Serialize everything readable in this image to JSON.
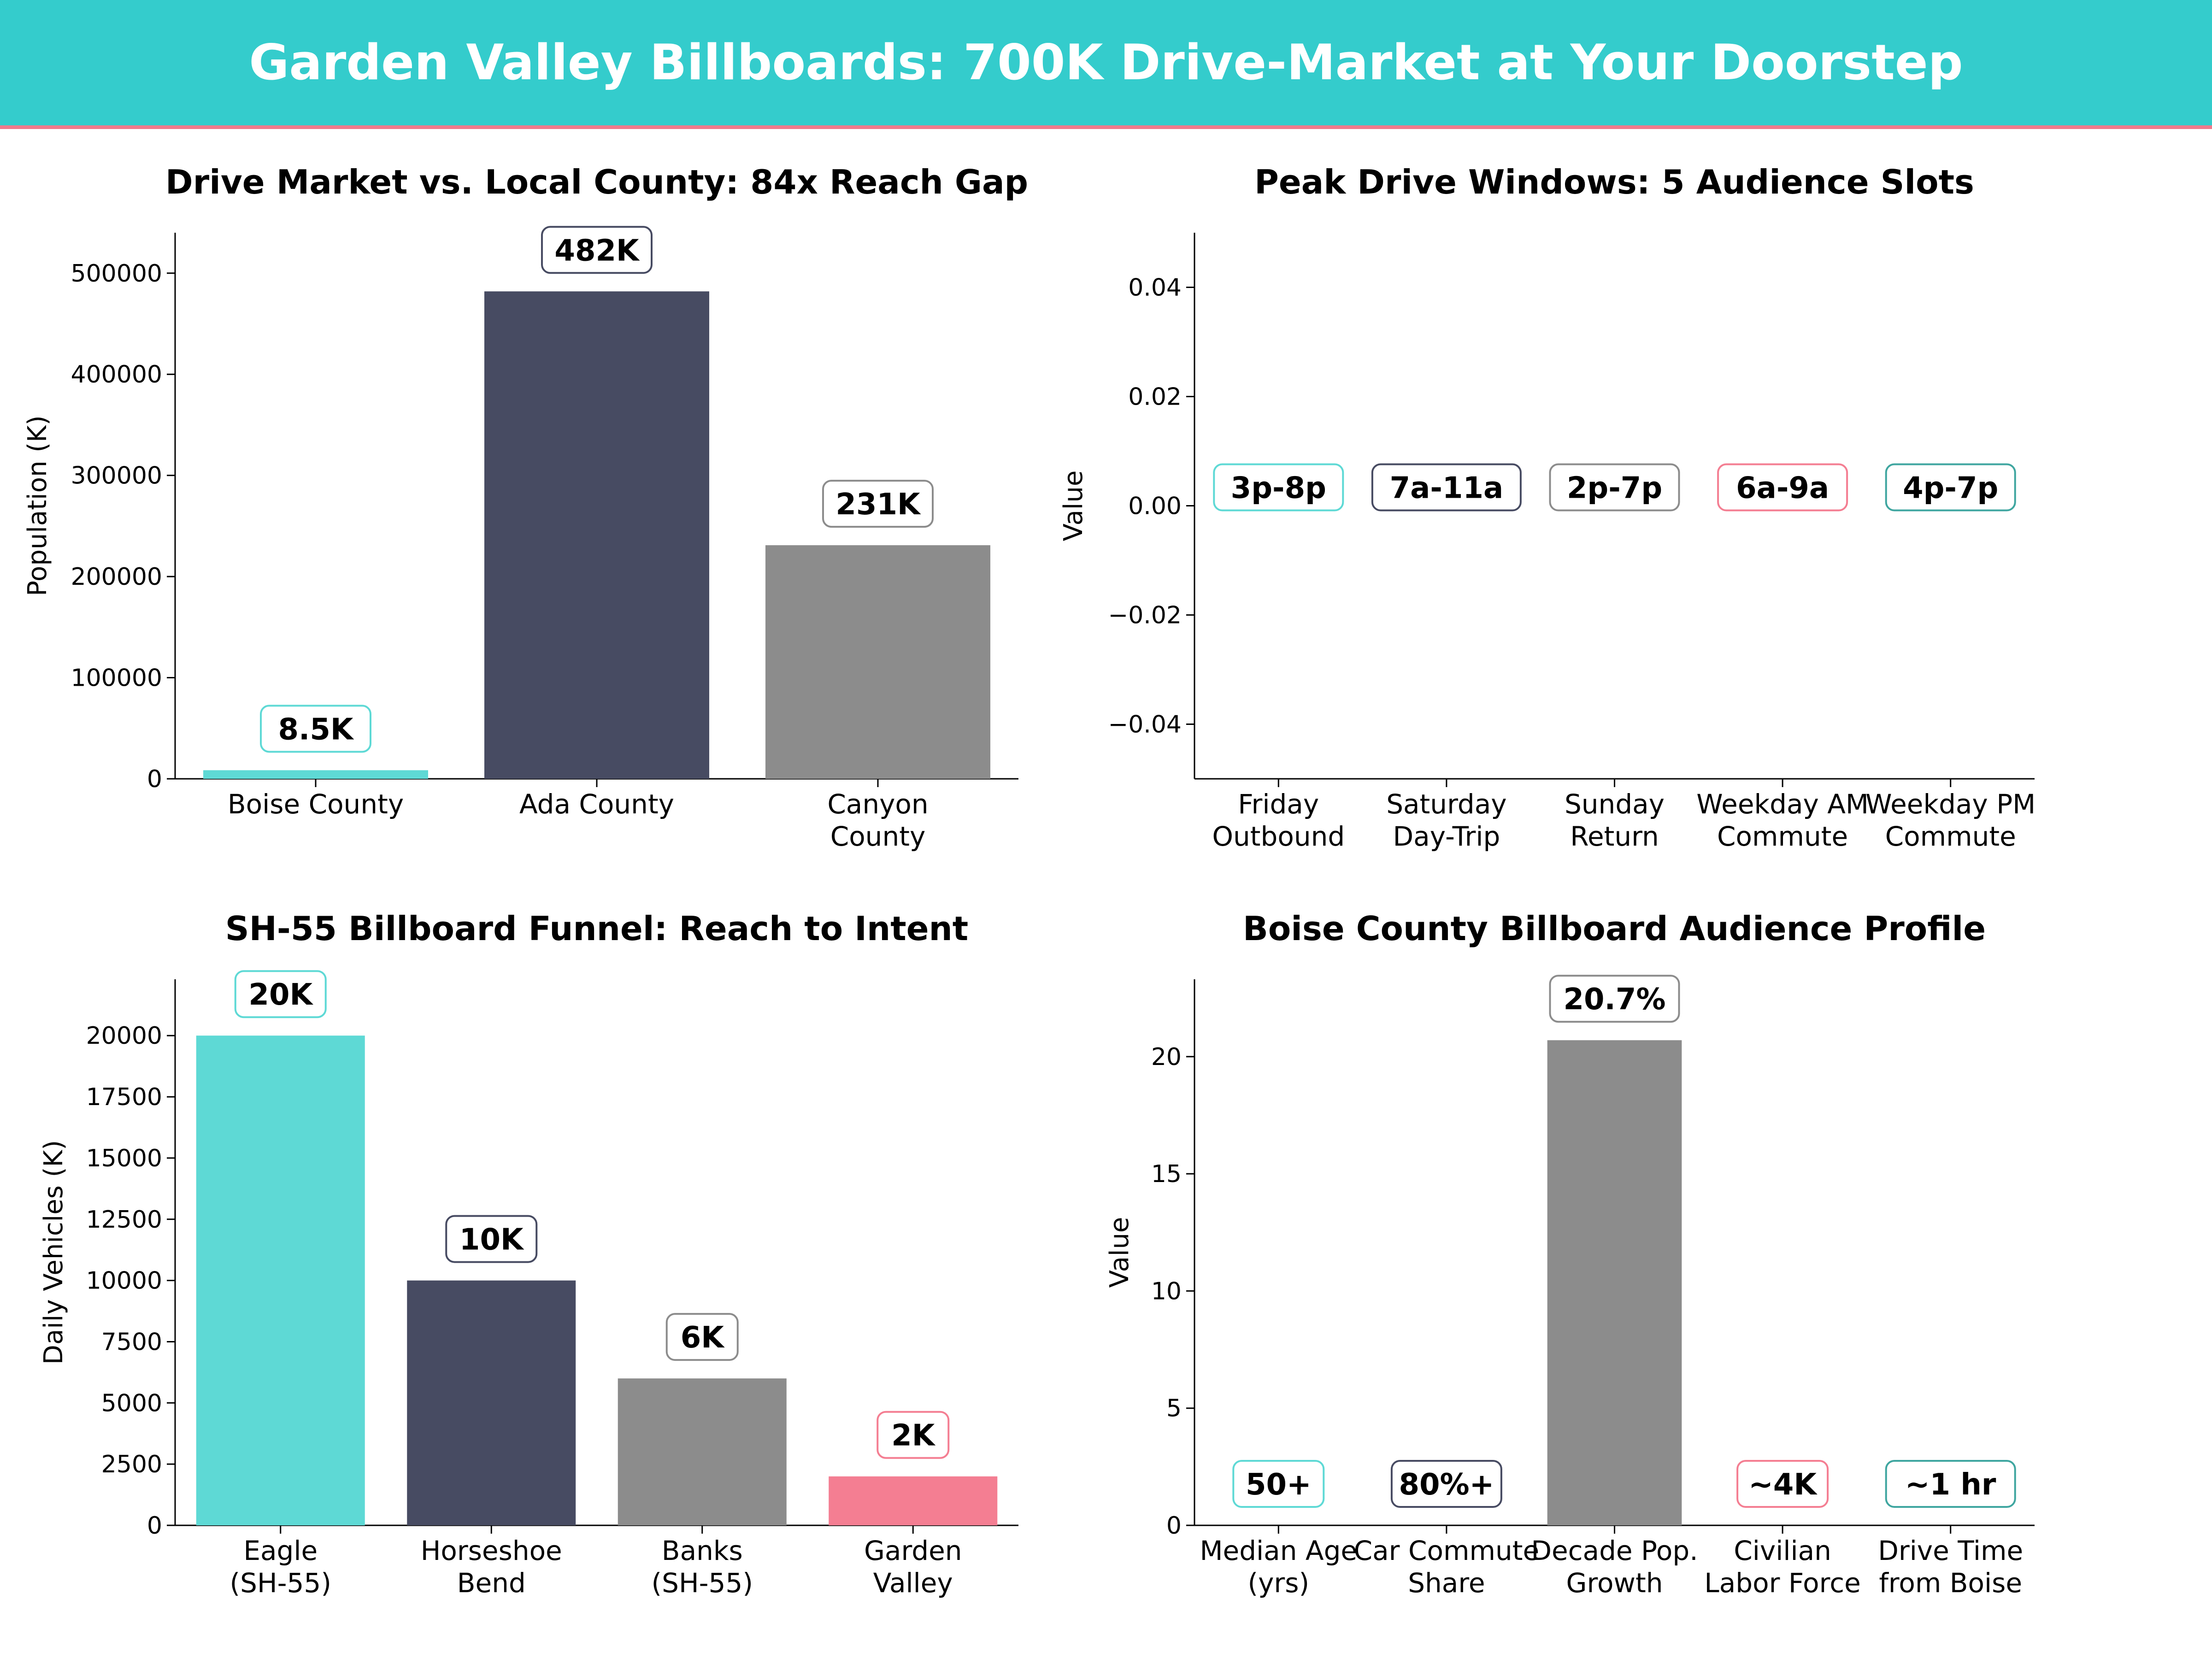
{
  "header": {
    "title": "Garden Valley Billboards: 700K Drive-Market at Your Doorstep",
    "background": "#34cccc",
    "accent": "#f07a8c"
  },
  "chart_data": [
    {
      "id": "drive",
      "type": "bar",
      "title": "Drive Market vs. Local County: 84x Reach Gap",
      "xlabel": "",
      "ylabel": "Population (K)",
      "categories": [
        [
          "Boise County"
        ],
        [
          "Ada County"
        ],
        [
          "Canyon",
          "County"
        ]
      ],
      "values": [
        8500,
        482000,
        231000
      ],
      "data_labels": [
        "8.5K",
        "482K",
        "231K"
      ],
      "colors": [
        "#5ed9d5",
        "#474b62",
        "#8c8c8c"
      ],
      "label_borders": [
        "#5ed9d5",
        "#474b62",
        "#8c8c8c"
      ],
      "ylim": [
        0,
        540000
      ],
      "yticks": [
        0,
        100000,
        200000,
        300000,
        400000,
        500000
      ],
      "grid": false
    },
    {
      "id": "peak",
      "type": "bar",
      "title": "Peak Drive Windows: 5 Audience Slots",
      "xlabel": "",
      "ylabel": "Value",
      "categories": [
        [
          "Friday",
          "Outbound"
        ],
        [
          "Saturday",
          "Day-Trip"
        ],
        [
          "Sunday",
          "Return"
        ],
        [
          "Weekday AM",
          "Commute"
        ],
        [
          "Weekday PM",
          "Commute"
        ]
      ],
      "values": [
        0,
        0,
        0,
        0,
        0
      ],
      "data_labels": [
        "3p-8p",
        "7a-11a",
        "2p-7p",
        "6a-9a",
        "4p-7p"
      ],
      "colors": [
        "#5ed9d5",
        "#474b62",
        "#8c8c8c",
        "#f47e92",
        "#3fa6a0"
      ],
      "label_borders": [
        "#5ed9d5",
        "#474b62",
        "#8c8c8c",
        "#f47e92",
        "#3fa6a0"
      ],
      "ylim": [
        -0.05,
        0.05
      ],
      "yticks": [
        -0.04,
        -0.02,
        0.0,
        0.02,
        0.04
      ],
      "ytick_labels": [
        "−0.04",
        "−0.02",
        "0.00",
        "0.02",
        "0.04"
      ],
      "grid": false
    },
    {
      "id": "funnel",
      "type": "bar",
      "title": "SH-55 Billboard Funnel: Reach to Intent",
      "xlabel": "",
      "ylabel": "Daily Vehicles (K)",
      "categories": [
        [
          "Eagle",
          "(SH-55)"
        ],
        [
          "Horseshoe",
          "Bend"
        ],
        [
          "Banks",
          "(SH-55)"
        ],
        [
          "Garden",
          "Valley"
        ]
      ],
      "values": [
        20000,
        10000,
        6000,
        2000
      ],
      "data_labels": [
        "20K",
        "10K",
        "6K",
        "2K"
      ],
      "colors": [
        "#5ed9d5",
        "#474b62",
        "#8c8c8c",
        "#f47e92"
      ],
      "label_borders": [
        "#5ed9d5",
        "#474b62",
        "#8c8c8c",
        "#f47e92"
      ],
      "ylim": [
        0,
        22300
      ],
      "yticks": [
        0,
        2500,
        5000,
        7500,
        10000,
        12500,
        15000,
        17500,
        20000
      ],
      "grid": false
    },
    {
      "id": "profile",
      "type": "bar",
      "title": "Boise County Billboard Audience Profile",
      "xlabel": "",
      "ylabel": "Value",
      "categories": [
        [
          "Median Age",
          "(yrs)"
        ],
        [
          "Car Commute",
          "Share"
        ],
        [
          "Decade Pop.",
          "Growth"
        ],
        [
          "Civilian",
          "Labor Force"
        ],
        [
          "Drive Time",
          "from Boise"
        ]
      ],
      "values": [
        0,
        0,
        20.7,
        0,
        0
      ],
      "data_labels": [
        "50+",
        "80%+",
        "20.7%",
        "~4K",
        "~1 hr"
      ],
      "colors": [
        "#5ed9d5",
        "#474b62",
        "#8c8c8c",
        "#f47e92",
        "#3fa6a0"
      ],
      "label_borders": [
        "#5ed9d5",
        "#474b62",
        "#8c8c8c",
        "#f47e92",
        "#3fa6a0"
      ],
      "ylim": [
        0,
        23.3
      ],
      "yticks": [
        0,
        5,
        10,
        15,
        20
      ],
      "grid": false
    }
  ]
}
